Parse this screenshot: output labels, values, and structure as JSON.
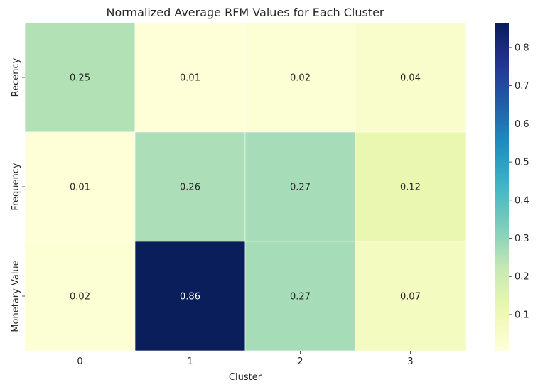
{
  "chart_data": {
    "type": "heatmap",
    "title": "Normalized Average RFM Values for Each Cluster",
    "xlabel": "Cluster",
    "ylabel": "",
    "x_categories": [
      "0",
      "1",
      "2",
      "3"
    ],
    "y_categories": [
      "Recency",
      "Frequency",
      "Monetary Value"
    ],
    "values": [
      [
        0.25,
        0.01,
        0.02,
        0.04
      ],
      [
        0.01,
        0.26,
        0.27,
        0.12
      ],
      [
        0.02,
        0.86,
        0.27,
        0.07
      ]
    ],
    "value_labels": [
      [
        "0.25",
        "0.01",
        "0.02",
        "0.04"
      ],
      [
        "0.01",
        "0.26",
        "0.27",
        "0.12"
      ],
      [
        "0.02",
        "0.86",
        "0.27",
        "0.07"
      ]
    ],
    "colormap": "YlGnBu",
    "colorbar": {
      "range": [
        0.005,
        0.865
      ],
      "ticks": [
        0.1,
        0.2,
        0.3,
        0.4,
        0.5,
        0.6,
        0.7,
        0.8
      ],
      "tick_labels": [
        "0.1",
        "0.2",
        "0.3",
        "0.4",
        "0.5",
        "0.6",
        "0.7",
        "0.8"
      ]
    },
    "grid": false,
    "legend": "colorbar-right"
  }
}
